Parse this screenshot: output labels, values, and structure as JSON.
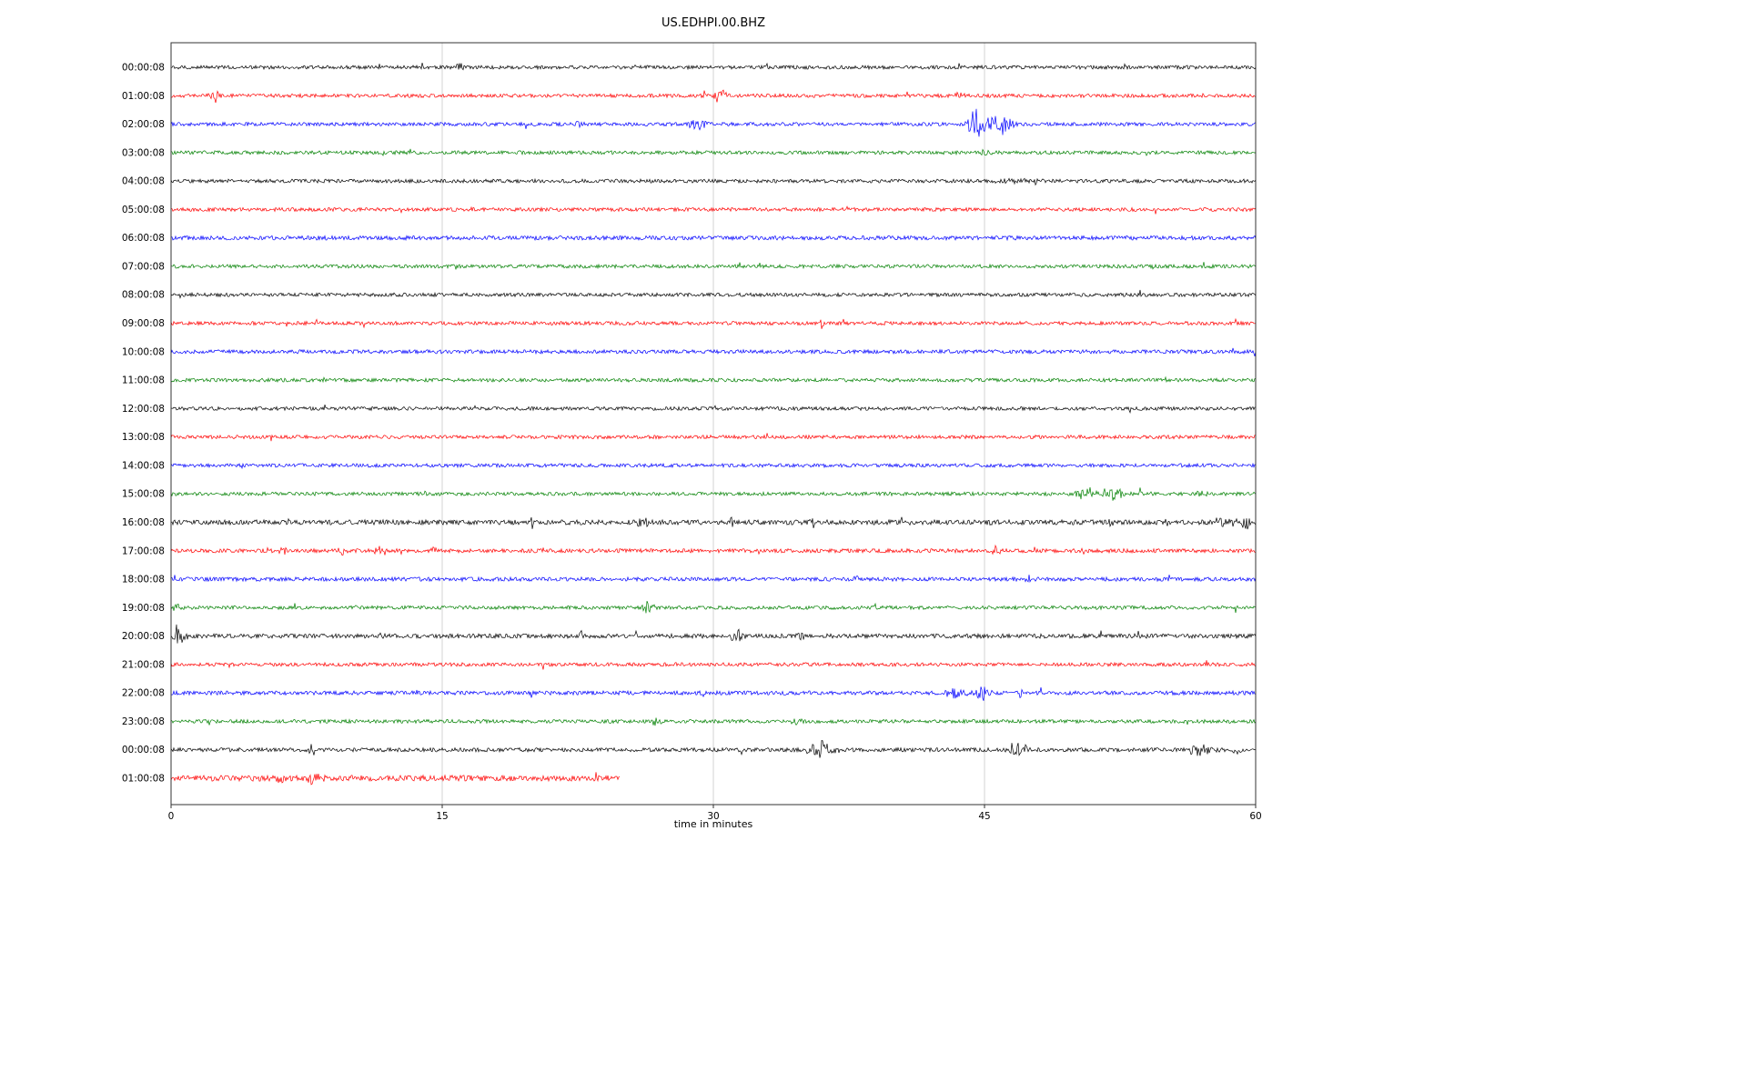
{
  "chart_data": {
    "type": "line",
    "subtype": "helicorder-seismogram",
    "title": "US.EDHPI.00.BHZ",
    "xlabel": "time in minutes",
    "xlim": [
      0,
      60
    ],
    "xticks": [
      0,
      15,
      30,
      45,
      60
    ],
    "xtick_labels": [
      "0",
      "15",
      "30",
      "45",
      "60"
    ],
    "grid": {
      "vertical_lines_at": [
        15,
        30,
        45
      ],
      "color": "#c8c8c8"
    },
    "legend": "none",
    "color_cycle": [
      "#000000",
      "#ff0000",
      "#0000ff",
      "#008000"
    ],
    "rows": [
      {
        "label": "00:00:08",
        "color": "#000000",
        "noise": 1.0,
        "end": 60,
        "events": [
          {
            "x": 16.0,
            "amp": 5,
            "dur": 0.4
          }
        ]
      },
      {
        "label": "01:00:08",
        "color": "#ff0000",
        "noise": 1.0,
        "end": 60,
        "events": [
          {
            "x": 2.4,
            "amp": 7,
            "dur": 0.6
          },
          {
            "x": 30.4,
            "amp": 10,
            "dur": 0.7
          },
          {
            "x": 43.5,
            "amp": 3,
            "dur": 0.5
          }
        ]
      },
      {
        "label": "02:00:08",
        "color": "#0000ff",
        "noise": 1.0,
        "end": 60,
        "events": [
          {
            "x": 22.6,
            "amp": 5,
            "dur": 0.5
          },
          {
            "x": 29.2,
            "amp": 6,
            "dur": 1.0
          },
          {
            "x": 44.6,
            "amp": 20,
            "dur": 1.1
          },
          {
            "x": 45.9,
            "amp": 14,
            "dur": 1.0
          }
        ]
      },
      {
        "label": "03:00:08",
        "color": "#008000",
        "noise": 1.0,
        "end": 60,
        "events": [
          {
            "x": 45.0,
            "amp": 5,
            "dur": 0.3
          }
        ]
      },
      {
        "label": "04:00:08",
        "color": "#000000",
        "noise": 1.0,
        "end": 60,
        "events": [
          {
            "x": 46.5,
            "amp": 3,
            "dur": 1.8
          }
        ]
      },
      {
        "label": "05:00:08",
        "color": "#ff0000",
        "noise": 1.0,
        "end": 60,
        "events": []
      },
      {
        "label": "06:00:08",
        "color": "#0000ff",
        "noise": 1.15,
        "end": 60,
        "events": []
      },
      {
        "label": "07:00:08",
        "color": "#008000",
        "noise": 1.0,
        "end": 60,
        "events": []
      },
      {
        "label": "08:00:08",
        "color": "#000000",
        "noise": 1.0,
        "end": 60,
        "events": []
      },
      {
        "label": "09:00:08",
        "color": "#ff0000",
        "noise": 1.0,
        "end": 60,
        "events": [
          {
            "x": 36.0,
            "amp": 6,
            "dur": 0.3
          }
        ]
      },
      {
        "label": "10:00:08",
        "color": "#0000ff",
        "noise": 1.05,
        "end": 60,
        "events": []
      },
      {
        "label": "11:00:08",
        "color": "#008000",
        "noise": 1.0,
        "end": 60,
        "events": []
      },
      {
        "label": "12:00:08",
        "color": "#000000",
        "noise": 1.0,
        "end": 60,
        "events": []
      },
      {
        "label": "13:00:08",
        "color": "#ff0000",
        "noise": 1.0,
        "end": 60,
        "events": []
      },
      {
        "label": "14:00:08",
        "color": "#0000ff",
        "noise": 1.0,
        "end": 60,
        "events": []
      },
      {
        "label": "15:00:08",
        "color": "#008000",
        "noise": 1.0,
        "end": 60,
        "events": [
          {
            "x": 50.6,
            "amp": 8,
            "dur": 1.0
          },
          {
            "x": 52.0,
            "amp": 9,
            "dur": 1.4
          },
          {
            "x": 53.6,
            "amp": 5,
            "dur": 0.8
          },
          {
            "x": 57.0,
            "amp": 4,
            "dur": 0.6
          }
        ]
      },
      {
        "label": "16:00:08",
        "color": "#000000",
        "noise": 1.35,
        "end": 60,
        "events": [
          {
            "x": 20.0,
            "amp": 5,
            "dur": 0.3
          },
          {
            "x": 26.0,
            "amp": 6,
            "dur": 0.7
          },
          {
            "x": 31.0,
            "amp": 4,
            "dur": 0.3
          },
          {
            "x": 35.5,
            "amp": 6,
            "dur": 0.3
          },
          {
            "x": 40.5,
            "amp": 6,
            "dur": 0.3
          },
          {
            "x": 45.2,
            "amp": 5,
            "dur": 0.3
          },
          {
            "x": 52.0,
            "amp": 6,
            "dur": 0.4
          },
          {
            "x": 55.0,
            "amp": 5,
            "dur": 0.3
          },
          {
            "x": 58.2,
            "amp": 6,
            "dur": 1.2
          },
          {
            "x": 59.5,
            "amp": 7,
            "dur": 0.5
          }
        ]
      },
      {
        "label": "17:00:08",
        "color": "#ff0000",
        "noise": 1.1,
        "end": 60,
        "events": [
          {
            "x": 6.2,
            "amp": 5,
            "dur": 0.4
          },
          {
            "x": 9.5,
            "amp": 5,
            "dur": 0.4
          },
          {
            "x": 11.5,
            "amp": 6,
            "dur": 0.4
          },
          {
            "x": 14.5,
            "amp": 8,
            "dur": 0.3
          },
          {
            "x": 32.5,
            "amp": 5,
            "dur": 0.3
          },
          {
            "x": 45.6,
            "amp": 6,
            "dur": 0.4
          },
          {
            "x": 50.5,
            "amp": 5,
            "dur": 0.3
          }
        ]
      },
      {
        "label": "18:00:08",
        "color": "#0000ff",
        "noise": 1.1,
        "end": 60,
        "events": [
          {
            "x": 0.3,
            "amp": 7,
            "dur": 0.4
          },
          {
            "x": 37.8,
            "amp": 7,
            "dur": 0.3
          },
          {
            "x": 47.5,
            "amp": 5,
            "dur": 0.5
          }
        ]
      },
      {
        "label": "19:00:08",
        "color": "#008000",
        "noise": 1.0,
        "end": 60,
        "events": [
          {
            "x": 0.3,
            "amp": 5,
            "dur": 0.3
          },
          {
            "x": 26.3,
            "amp": 7,
            "dur": 0.6
          }
        ]
      },
      {
        "label": "20:00:08",
        "color": "#000000",
        "noise": 1.2,
        "end": 60,
        "events": [
          {
            "x": 0.4,
            "amp": 14,
            "dur": 0.5
          },
          {
            "x": 11.7,
            "amp": 6,
            "dur": 0.4
          },
          {
            "x": 22.7,
            "amp": 5,
            "dur": 0.3
          },
          {
            "x": 31.3,
            "amp": 7,
            "dur": 0.7
          },
          {
            "x": 34.8,
            "amp": 6,
            "dur": 0.5
          },
          {
            "x": 53.5,
            "amp": 5,
            "dur": 0.4
          }
        ]
      },
      {
        "label": "21:00:08",
        "color": "#ff0000",
        "noise": 1.0,
        "end": 60,
        "events": [
          {
            "x": 27.7,
            "amp": 6,
            "dur": 0.3
          }
        ]
      },
      {
        "label": "22:00:08",
        "color": "#0000ff",
        "noise": 1.1,
        "end": 60,
        "events": [
          {
            "x": 43.3,
            "amp": 6,
            "dur": 1.0
          },
          {
            "x": 44.9,
            "amp": 8,
            "dur": 0.7
          },
          {
            "x": 47.0,
            "amp": 4,
            "dur": 0.4
          }
        ]
      },
      {
        "label": "23:00:08",
        "color": "#008000",
        "noise": 1.0,
        "end": 60,
        "events": [
          {
            "x": 26.8,
            "amp": 4,
            "dur": 0.4
          },
          {
            "x": 34.5,
            "amp": 4,
            "dur": 0.5
          }
        ]
      },
      {
        "label": "00:00:08",
        "color": "#000000",
        "noise": 1.1,
        "end": 60,
        "events": [
          {
            "x": 7.8,
            "amp": 6,
            "dur": 0.4
          },
          {
            "x": 35.9,
            "amp": 9,
            "dur": 1.4
          },
          {
            "x": 46.8,
            "amp": 9,
            "dur": 1.1
          },
          {
            "x": 56.8,
            "amp": 7,
            "dur": 1.1
          },
          {
            "x": 59.0,
            "amp": 6,
            "dur": 0.7
          }
        ]
      },
      {
        "label": "01:00:08",
        "color": "#ff0000",
        "noise": 1.6,
        "end": 24.8,
        "events": [
          {
            "x": 6.0,
            "amp": 6,
            "dur": 0.5
          },
          {
            "x": 7.8,
            "amp": 10,
            "dur": 0.6
          }
        ]
      }
    ]
  }
}
